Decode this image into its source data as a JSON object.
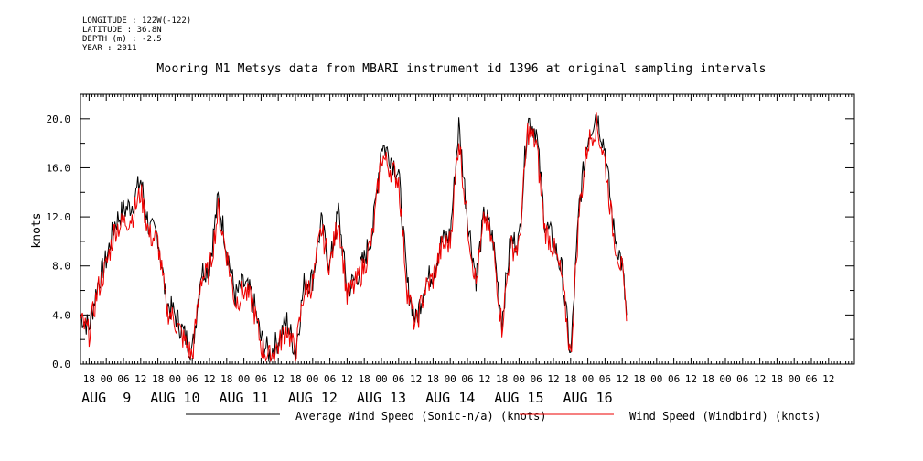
{
  "metadata": {
    "longitude": "LONGITUDE : 122W(-122)",
    "latitude": "LATITUDE : 36.8N",
    "depth": "DEPTH (m) : -2.5",
    "year": "YEAR : 2011"
  },
  "chart_data": {
    "type": "line",
    "title": "Mooring M1 Metsys data from MBARI instrument id 1396 at original sampling intervals",
    "ylabel": "knots",
    "xlabel": "",
    "ylim": [
      0,
      22
    ],
    "yticks": [
      0,
      4,
      8,
      12,
      16,
      20
    ],
    "ytick_labels": [
      "0.0",
      "4.0",
      "8.0",
      "12.0",
      "16.0",
      "20.0"
    ],
    "xlim_hours": [
      -9,
      261
    ],
    "x_hour_ticks": [
      -6,
      0,
      6,
      12,
      18,
      24,
      30,
      36,
      42,
      48,
      54,
      60,
      66,
      72,
      78,
      84,
      90,
      96,
      102,
      108,
      114,
      120,
      126,
      132,
      138,
      144,
      150,
      156,
      162,
      168,
      174,
      180,
      186,
      192,
      198,
      204,
      210,
      216,
      222,
      228,
      234,
      240,
      246,
      252
    ],
    "x_hour_labels": [
      "18",
      "00",
      "06",
      "12",
      "18",
      "00",
      "06",
      "12",
      "18",
      "00",
      "06",
      "12",
      "18",
      "00",
      "06",
      "12",
      "18",
      "00",
      "06",
      "12",
      "18",
      "00",
      "06",
      "12",
      "18",
      "00",
      "06",
      "12",
      "18",
      "00",
      "06",
      "12",
      "18",
      "00",
      "06",
      "12",
      "18",
      "00",
      "06",
      "12",
      "18",
      "00",
      "06",
      "12"
    ],
    "date_labels": [
      "AUG  9",
      "AUG 10",
      "AUG 11",
      "AUG 12",
      "AUG 13",
      "AUG 14",
      "AUG 15",
      "AUG 16"
    ],
    "grid": false,
    "legend_placement": "bottom",
    "series": [
      {
        "name": "Average Wind Speed (Sonic-n/a) (knots)",
        "color": "#000000",
        "x": [
          "AUG 8 15:00",
          "AUG 8 18:00",
          "AUG 8 21:00",
          "AUG 9 00:00",
          "AUG 9 03:00",
          "AUG 9 06:00",
          "AUG 9 09:00",
          "AUG 9 12:00",
          "AUG 9 15:00",
          "AUG 9 18:00",
          "AUG 9 21:00",
          "AUG 10 00:00",
          "AUG 10 03:00",
          "AUG 10 06:00",
          "AUG 10 09:00",
          "AUG 10 12:00",
          "AUG 10 15:00",
          "AUG 10 18:00",
          "AUG 10 21:00",
          "AUG 11 00:00",
          "AUG 11 03:00",
          "AUG 11 06:00",
          "AUG 11 09:00",
          "AUG 11 12:00",
          "AUG 11 15:00",
          "AUG 11 18:00",
          "AUG 11 21:00",
          "AUG 12 00:00",
          "AUG 12 03:00",
          "AUG 12 06:00",
          "AUG 12 09:00",
          "AUG 12 12:00",
          "AUG 12 15:00",
          "AUG 12 18:00",
          "AUG 12 21:00",
          "AUG 13 00:00",
          "AUG 13 03:00",
          "AUG 13 06:00",
          "AUG 13 09:00",
          "AUG 13 12:00",
          "AUG 13 15:00",
          "AUG 13 18:00",
          "AUG 13 21:00",
          "AUG 14 00:00",
          "AUG 14 03:00",
          "AUG 14 06:00",
          "AUG 14 09:00",
          "AUG 14 12:00",
          "AUG 14 15:00",
          "AUG 14 18:00",
          "AUG 14 21:00",
          "AUG 15 00:00",
          "AUG 15 03:00",
          "AUG 15 06:00",
          "AUG 15 09:00",
          "AUG 15 12:00",
          "AUG 15 15:00",
          "AUG 15 18:00",
          "AUG 15 21:00",
          "AUG 16 00:00",
          "AUG 16 03:00",
          "AUG 16 06:00",
          "AUG 16 09:00",
          "AUG 16 12:00",
          "AUG 16 13:30"
        ],
        "y": [
          4.0,
          3.0,
          6.5,
          8.5,
          11.5,
          12.5,
          13.0,
          15.0,
          11.0,
          10.5,
          5.0,
          4.0,
          2.5,
          1.0,
          7.5,
          8.0,
          13.5,
          9.5,
          5.5,
          6.5,
          5.5,
          2.0,
          0.8,
          2.0,
          3.5,
          1.0,
          6.5,
          7.0,
          11.5,
          8.0,
          12.5,
          6.0,
          7.0,
          8.5,
          11.0,
          18.0,
          17.0,
          15.5,
          6.5,
          3.5,
          6.5,
          7.5,
          10.0,
          10.5,
          19.5,
          12.0,
          7.0,
          12.5,
          10.0,
          3.5,
          10.0,
          10.0,
          20.0,
          19.0,
          11.5,
          10.0,
          7.5,
          0.5,
          13.0,
          18.5,
          20.5,
          17.5,
          11.0,
          8.0,
          4.0
        ]
      },
      {
        "name": "Wind Speed (Windbird) (knots)",
        "color": "#ee0000",
        "x": [
          "AUG 8 15:00",
          "AUG 8 18:00",
          "AUG 8 21:00",
          "AUG 9 00:00",
          "AUG 9 03:00",
          "AUG 9 06:00",
          "AUG 9 09:00",
          "AUG 9 12:00",
          "AUG 9 15:00",
          "AUG 9 18:00",
          "AUG 9 21:00",
          "AUG 10 00:00",
          "AUG 10 03:00",
          "AUG 10 06:00",
          "AUG 10 09:00",
          "AUG 10 12:00",
          "AUG 10 15:00",
          "AUG 10 18:00",
          "AUG 10 21:00",
          "AUG 11 00:00",
          "AUG 11 03:00",
          "AUG 11 06:00",
          "AUG 11 09:00",
          "AUG 11 12:00",
          "AUG 11 15:00",
          "AUG 11 18:00",
          "AUG 11 21:00",
          "AUG 12 00:00",
          "AUG 12 03:00",
          "AUG 12 06:00",
          "AUG 12 09:00",
          "AUG 12 12:00",
          "AUG 12 15:00",
          "AUG 12 18:00",
          "AUG 12 21:00",
          "AUG 13 00:00",
          "AUG 13 03:00",
          "AUG 13 06:00",
          "AUG 13 09:00",
          "AUG 13 12:00",
          "AUG 13 15:00",
          "AUG 13 18:00",
          "AUG 13 21:00",
          "AUG 14 00:00",
          "AUG 14 03:00",
          "AUG 14 06:00",
          "AUG 14 09:00",
          "AUG 14 12:00",
          "AUG 14 15:00",
          "AUG 14 18:00",
          "AUG 14 21:00",
          "AUG 15 00:00",
          "AUG 15 03:00",
          "AUG 15 06:00",
          "AUG 15 09:00",
          "AUG 15 12:00",
          "AUG 15 15:00",
          "AUG 15 18:00",
          "AUG 15 21:00",
          "AUG 16 00:00",
          "AUG 16 03:00",
          "AUG 16 06:00",
          "AUG 16 09:00",
          "AUG 16 12:00",
          "AUG 16 13:30"
        ],
        "y": [
          3.5,
          2.5,
          6.0,
          8.0,
          11.0,
          11.5,
          12.0,
          14.0,
          10.5,
          10.0,
          4.5,
          3.5,
          2.0,
          0.6,
          7.0,
          7.5,
          12.5,
          9.0,
          5.0,
          6.0,
          5.0,
          1.5,
          0.5,
          1.5,
          3.0,
          0.8,
          6.0,
          6.5,
          11.0,
          8.0,
          12.0,
          5.5,
          6.5,
          8.0,
          10.5,
          17.0,
          16.0,
          15.0,
          6.0,
          3.0,
          6.0,
          7.0,
          9.5,
          10.0,
          18.5,
          11.5,
          6.5,
          12.0,
          9.5,
          3.0,
          9.5,
          9.5,
          19.0,
          18.0,
          11.0,
          9.5,
          7.0,
          0.5,
          12.5,
          18.0,
          19.5,
          16.5,
          10.5,
          7.5,
          3.5
        ]
      }
    ]
  }
}
